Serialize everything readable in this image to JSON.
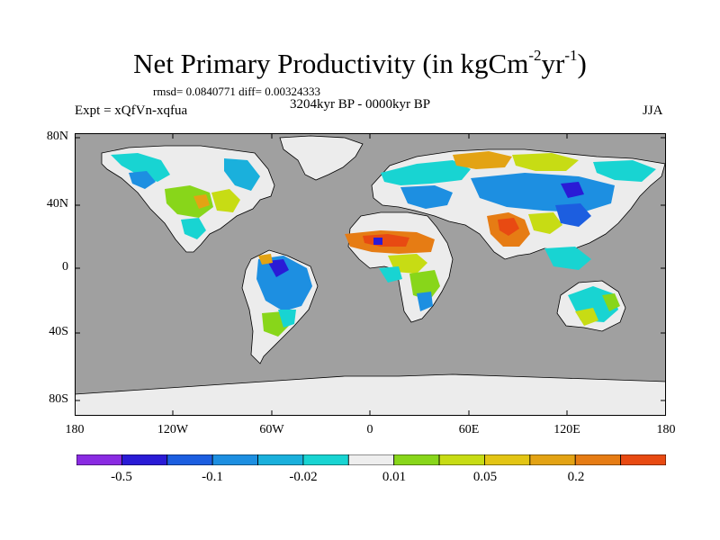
{
  "title": {
    "main": "Net Primary Productivity (in kgCm",
    "sup1": "-2",
    "mid": "yr",
    "sup2": "-1",
    "end": ")"
  },
  "stats": "rmsd= 0.0840771 diff= 0.00324333",
  "subtitle": "3204kyr BP - 0000kyr BP",
  "experiment": "Expt = xQfVn-xqfua",
  "season": "JJA",
  "colors": {
    "ocean": "#a0a0a0",
    "land_neutral": "#ececec",
    "coastline": "#000000"
  },
  "map": {
    "lat_labels": [
      "80N",
      "40N",
      "0",
      "40S",
      "80S"
    ],
    "lon_labels": [
      "180",
      "120W",
      "60W",
      "0",
      "60E",
      "120E",
      "180"
    ]
  },
  "colorbar": {
    "colors": [
      "#8a2be2",
      "#2a1bd6",
      "#1c5ee0",
      "#1d8fe1",
      "#1ab0dc",
      "#18d4d2",
      "#eeeeee",
      "#88d61a",
      "#c7dc14",
      "#e3c514",
      "#e3a314",
      "#e67c14",
      "#e84a12"
    ],
    "labels": [
      "-0.5",
      "-0.1",
      "-0.02",
      "0.01",
      "0.05",
      "0.2"
    ]
  }
}
